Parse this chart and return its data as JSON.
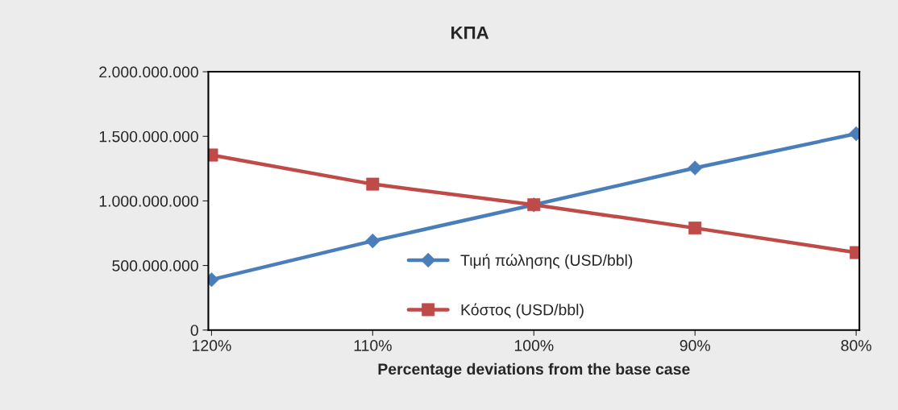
{
  "chart_data": {
    "type": "line",
    "title": "ΚΠΑ",
    "xlabel": "Percentage deviations from the base case",
    "categories": [
      "120%",
      "110%",
      "100%",
      "90%",
      "80%"
    ],
    "series": [
      {
        "name": "Τιμή πώλησης (USD/bbl)",
        "color": "#4a7ebb",
        "marker": "diamond",
        "values": [
          390000000,
          690000000,
          970000000,
          1255000000,
          1520000000
        ]
      },
      {
        "name": "Κόστος (USD/bbl)",
        "color": "#be4b48",
        "marker": "square",
        "values": [
          1355000000,
          1130000000,
          970000000,
          790000000,
          600000000
        ]
      }
    ],
    "ylim": [
      0,
      2000000000
    ],
    "yticks": [
      {
        "value": 0,
        "label": "0"
      },
      {
        "value": 500000000,
        "label": "500.000.000"
      },
      {
        "value": 1000000000,
        "label": "1.000.000.000"
      },
      {
        "value": 1500000000,
        "label": "1.500.000.000"
      },
      {
        "value": 2000000000,
        "label": "2.000.000.000"
      }
    ],
    "grid": false,
    "legend": "bottom",
    "line_style": "solid"
  }
}
